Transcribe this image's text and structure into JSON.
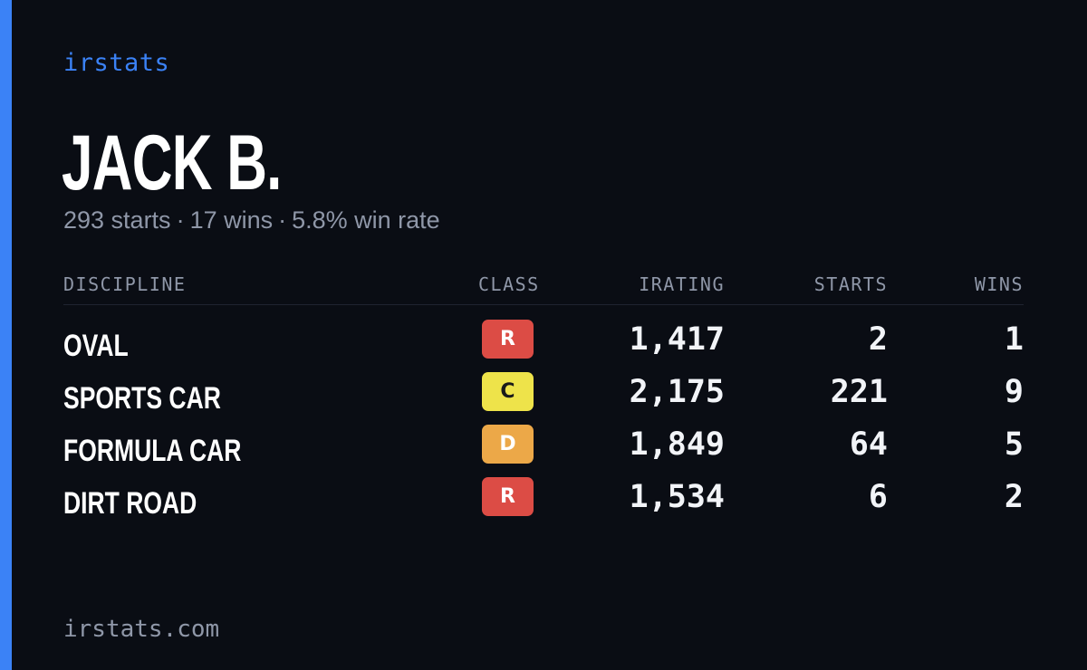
{
  "brand": "irstats",
  "driver": {
    "name": "JACK B.",
    "starts_text": "293 starts",
    "wins_text": "17 wins",
    "win_rate_text": "5.8% win rate",
    "separator": "·"
  },
  "table": {
    "headers": {
      "discipline": "DISCIPLINE",
      "class": "CLASS",
      "irating": "IRATING",
      "starts": "STARTS",
      "wins": "WINS"
    },
    "rows": [
      {
        "discipline": "OVAL",
        "class": "R",
        "class_bg": "#dc4c45",
        "class_fg": "#ffffff",
        "irating": "1,417",
        "starts": "2",
        "wins": "1"
      },
      {
        "discipline": "SPORTS CAR",
        "class": "C",
        "class_bg": "#eee34a",
        "class_fg": "#1a1a1a",
        "irating": "2,175",
        "starts": "221",
        "wins": "9"
      },
      {
        "discipline": "FORMULA CAR",
        "class": "D",
        "class_bg": "#eca848",
        "class_fg": "#ffffff",
        "irating": "1,849",
        "starts": "64",
        "wins": "5"
      },
      {
        "discipline": "DIRT ROAD",
        "class": "R",
        "class_bg": "#dc4c45",
        "class_fg": "#ffffff",
        "irating": "1,534",
        "starts": "6",
        "wins": "2"
      }
    ]
  },
  "footer": "irstats.com",
  "colors": {
    "background": "#0a0d14",
    "accent": "#3b82f6",
    "muted": "#8f97a8"
  }
}
